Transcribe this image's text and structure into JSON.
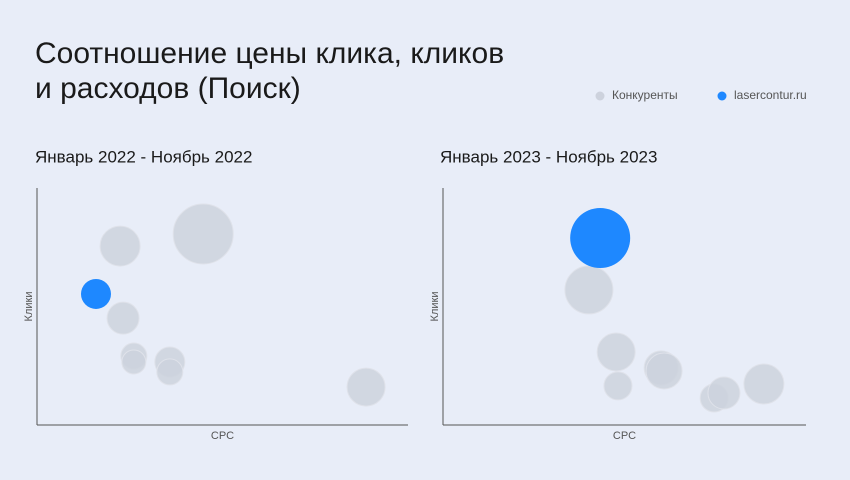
{
  "chart_data": [
    {
      "type": "bubble",
      "title": [
        "Соотношение цены клика, кликов",
        "и расходов (Поиск)"
      ],
      "subtitle": "Январь 2022 - Ноябрь 2022",
      "x_label": "CPC",
      "y_label": "Клики",
      "xlim": [
        0,
        100
      ],
      "ylim": [
        0,
        100
      ],
      "series": [
        {
          "name": "Конкуренты",
          "color": "#cdd2dd",
          "x": [
            22.4,
            44.8,
            23.2,
            26.1,
            26.1,
            35.8,
            35.8,
            88.7
          ],
          "values": [
            75.5,
            80.6,
            45.1,
            29.1,
            26.6,
            26.6,
            22.4,
            16.0
          ],
          "sizes": [
            20,
            30,
            16,
            13,
            12,
            15,
            13,
            19
          ]
        },
        {
          "name": "lasercontur.ru",
          "color": "#1e88ff",
          "x": [
            15.9
          ],
          "values": [
            55.3
          ],
          "sizes": [
            15
          ]
        }
      ]
    },
    {
      "type": "bubble",
      "subtitle": "Январь 2023 - Ноябрь 2023",
      "x_label": "CPC",
      "y_label": "Клики",
      "xlim": [
        0,
        100
      ],
      "ylim": [
        0,
        100
      ],
      "series": [
        {
          "name": "Конкуренты",
          "color": "#cdd2dd",
          "x": [
            40.2,
            47.7,
            48.2,
            60.1,
            60.9,
            74.7,
            77.4,
            88.4
          ],
          "values": [
            57.0,
            30.8,
            16.5,
            24.1,
            22.8,
            11.4,
            13.5,
            17.3
          ],
          "sizes": [
            24,
            19,
            14,
            17,
            18,
            14,
            16,
            20
          ]
        },
        {
          "name": "lasercontur.ru",
          "color": "#1e88ff",
          "x": [
            43.3
          ],
          "values": [
            78.9
          ],
          "sizes": [
            30
          ]
        }
      ]
    }
  ]
}
